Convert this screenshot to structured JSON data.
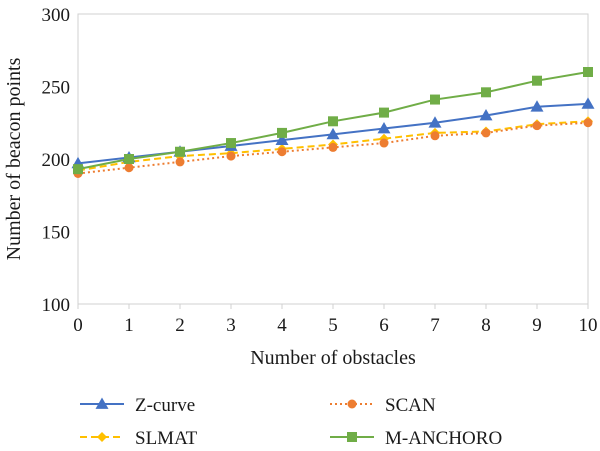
{
  "chart_data": {
    "type": "line",
    "title": "",
    "xlabel": "Number of obstacles",
    "ylabel": "Number of beacon points",
    "x": [
      0,
      1,
      2,
      3,
      4,
      5,
      6,
      7,
      8,
      9,
      10
    ],
    "xlim": [
      0,
      10
    ],
    "ylim": [
      100,
      300
    ],
    "yticks": [
      100,
      150,
      200,
      250,
      300
    ],
    "grid": false,
    "legend_position": "bottom",
    "series": [
      {
        "name": "Z-curve",
        "color": "#4472C4",
        "marker": "triangle",
        "line_style": "solid",
        "values": [
          197,
          201,
          205,
          209,
          213,
          217,
          221,
          225,
          230,
          236,
          238
        ]
      },
      {
        "name": "SCAN",
        "color": "#ED7D31",
        "marker": "circle",
        "line_style": "dotted",
        "values": [
          190,
          194,
          198,
          202,
          205,
          208,
          211,
          216,
          218,
          223,
          225
        ]
      },
      {
        "name": "SLMAT",
        "color": "#FFC000",
        "marker": "diamond",
        "line_style": "dashed",
        "values": [
          192,
          198,
          202,
          204,
          207,
          210,
          214,
          218,
          219,
          224,
          226
        ]
      },
      {
        "name": "M-ANCHORO",
        "color": "#70AD47",
        "marker": "square",
        "line_style": "solid",
        "values": [
          193,
          200,
          205,
          211,
          218,
          226,
          232,
          241,
          246,
          254,
          260
        ]
      }
    ]
  }
}
